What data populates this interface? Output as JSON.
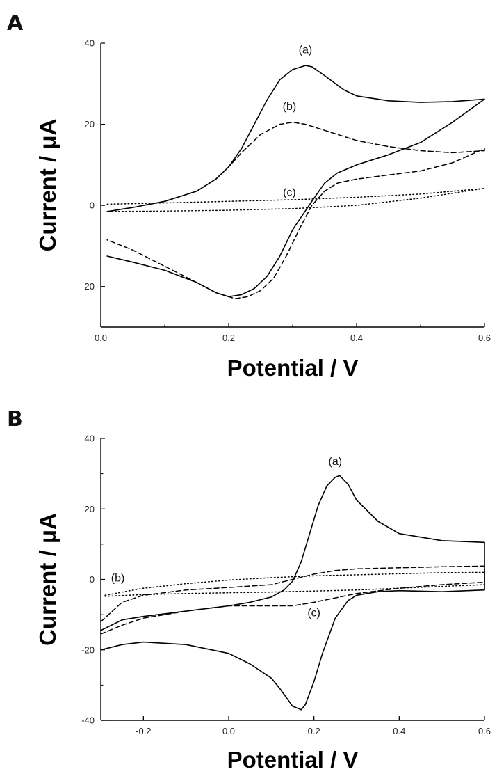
{
  "chart_data": [
    {
      "type": "line",
      "panel": "A",
      "xlabel": "Potential / V",
      "ylabel": "Current / μA",
      "xlim": [
        0.0,
        0.6
      ],
      "ylim": [
        -30,
        40
      ],
      "xticks": [
        0.0,
        0.2,
        0.4,
        0.6
      ],
      "yticks": [
        -20,
        0,
        20,
        40
      ],
      "grid": false,
      "series": [
        {
          "name": "(a)",
          "style": "solid",
          "label_at": [
            0.32,
            37.5
          ],
          "x": [
            0.01,
            0.05,
            0.1,
            0.15,
            0.18,
            0.2,
            0.22,
            0.24,
            0.26,
            0.28,
            0.3,
            0.32,
            0.33,
            0.35,
            0.38,
            0.4,
            0.45,
            0.5,
            0.55,
            0.6,
            0.6,
            0.55,
            0.5,
            0.45,
            0.4,
            0.37,
            0.35,
            0.33,
            0.3,
            0.28,
            0.26,
            0.24,
            0.22,
            0.2,
            0.18,
            0.15,
            0.1,
            0.05,
            0.01
          ],
          "y": [
            -1.5,
            -0.5,
            1.0,
            3.5,
            6.5,
            9.5,
            14.0,
            20.0,
            26.0,
            31.0,
            33.5,
            34.5,
            34.2,
            32.0,
            28.5,
            27.0,
            25.8,
            25.4,
            25.6,
            26.2,
            26.2,
            20.5,
            15.5,
            12.5,
            10.0,
            8.0,
            5.5,
            1.0,
            -6.0,
            -12.5,
            -17.5,
            -20.5,
            -22.0,
            -22.5,
            -21.5,
            -19.0,
            -16.0,
            -14.0,
            -12.5
          ]
        },
        {
          "name": "(b)",
          "style": "dashed",
          "label_at": [
            0.295,
            23.5
          ],
          "x": [
            0.01,
            0.05,
            0.1,
            0.15,
            0.18,
            0.2,
            0.22,
            0.25,
            0.28,
            0.3,
            0.32,
            0.35,
            0.4,
            0.45,
            0.5,
            0.55,
            0.6,
            0.6,
            0.55,
            0.5,
            0.45,
            0.4,
            0.37,
            0.35,
            0.33,
            0.31,
            0.29,
            0.27,
            0.25,
            0.23,
            0.21,
            0.2,
            0.18,
            0.15,
            0.1,
            0.05,
            0.01
          ],
          "y": [
            -1.5,
            -0.5,
            1.0,
            3.5,
            6.5,
            9.5,
            13.0,
            17.5,
            20.0,
            20.5,
            20.0,
            18.5,
            16.0,
            14.5,
            13.5,
            13.0,
            13.5,
            14.0,
            10.5,
            8.5,
            7.5,
            6.5,
            5.5,
            3.5,
            0.0,
            -6.0,
            -12.5,
            -18.0,
            -21.0,
            -22.5,
            -23.0,
            -22.5,
            -21.5,
            -19.0,
            -15.0,
            -11.0,
            -8.5
          ]
        },
        {
          "name": "(c)",
          "style": "dotted",
          "label_at": [
            0.295,
            2.3
          ],
          "x": [
            0.01,
            0.1,
            0.2,
            0.3,
            0.4,
            0.5,
            0.6,
            0.6,
            0.5,
            0.4,
            0.3,
            0.2,
            0.1,
            0.01
          ],
          "y": [
            0.3,
            0.6,
            1.0,
            1.4,
            2.0,
            2.8,
            4.2,
            4.2,
            1.8,
            0.0,
            -0.8,
            -1.2,
            -1.4,
            -1.5
          ]
        }
      ]
    },
    {
      "type": "line",
      "panel": "B",
      "xlabel": "Potential / V",
      "ylabel": "Current / μA",
      "xlim": [
        -0.3,
        0.6
      ],
      "ylim": [
        -40,
        40
      ],
      "xticks": [
        -0.2,
        0.0,
        0.2,
        0.4,
        0.6
      ],
      "yticks": [
        -40,
        -20,
        0,
        20,
        40
      ],
      "grid": false,
      "series": [
        {
          "name": "(a)",
          "style": "solid",
          "label_at": [
            0.25,
            32.5
          ],
          "x": [
            -0.3,
            -0.25,
            -0.2,
            -0.1,
            0.0,
            0.05,
            0.1,
            0.13,
            0.15,
            0.17,
            0.19,
            0.21,
            0.23,
            0.25,
            0.26,
            0.28,
            0.3,
            0.35,
            0.4,
            0.5,
            0.6,
            0.6,
            0.5,
            0.4,
            0.35,
            0.3,
            0.28,
            0.25,
            0.22,
            0.2,
            0.18,
            0.17,
            0.15,
            0.12,
            0.1,
            0.05,
            0.0,
            -0.1,
            -0.2,
            -0.25,
            -0.3
          ],
          "y": [
            -14.5,
            -11.5,
            -10.5,
            -9.0,
            -7.5,
            -6.5,
            -5.0,
            -3.0,
            -0.5,
            5.0,
            13.0,
            21.0,
            26.5,
            29.0,
            29.5,
            27.0,
            22.5,
            16.5,
            13.0,
            11.0,
            10.5,
            -3.0,
            -3.5,
            -3.2,
            -3.5,
            -4.5,
            -6.0,
            -11.0,
            -21.0,
            -29.0,
            -35.5,
            -37.0,
            -36.0,
            -31.0,
            -28.0,
            -24.0,
            -21.0,
            -18.5,
            -17.8,
            -18.5,
            -20.0
          ]
        },
        {
          "name": "(b)",
          "style": "dotted",
          "label_at": [
            -0.26,
            -0.6
          ],
          "x": [
            -0.29,
            -0.2,
            -0.1,
            0.0,
            0.1,
            0.2,
            0.3,
            0.4,
            0.5,
            0.6,
            0.6,
            0.5,
            0.4,
            0.3,
            0.2,
            0.1,
            0.0,
            -0.1,
            -0.2,
            -0.29
          ],
          "y": [
            -4.5,
            -2.5,
            -1.2,
            -0.2,
            0.5,
            1.0,
            1.3,
            1.6,
            1.9,
            2.0,
            -1.5,
            -2.0,
            -2.5,
            -3.0,
            -3.3,
            -3.6,
            -3.8,
            -4.0,
            -4.3,
            -4.8
          ]
        },
        {
          "name": "(c)",
          "style": "dashed",
          "label_at": [
            0.2,
            -10.5
          ],
          "x": [
            -0.3,
            -0.25,
            -0.2,
            -0.1,
            0.0,
            0.1,
            0.15,
            0.2,
            0.25,
            0.3,
            0.4,
            0.5,
            0.6,
            0.6,
            0.5,
            0.4,
            0.3,
            0.2,
            0.15,
            0.1,
            0.0,
            -0.1,
            -0.2,
            -0.25,
            -0.3
          ],
          "y": [
            -12.0,
            -6.5,
            -4.5,
            -3.0,
            -2.3,
            -1.5,
            0.0,
            1.5,
            2.5,
            3.0,
            3.3,
            3.6,
            3.8,
            -0.8,
            -1.5,
            -2.5,
            -4.0,
            -6.5,
            -7.5,
            -7.5,
            -7.5,
            -9.0,
            -11.0,
            -13.0,
            -15.5
          ]
        }
      ]
    }
  ]
}
